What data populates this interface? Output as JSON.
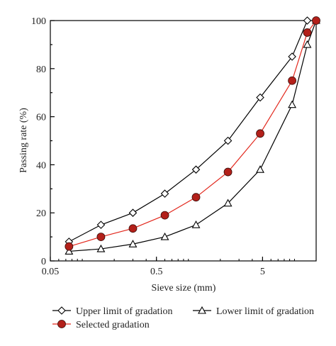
{
  "chart_data": {
    "type": "line",
    "xlabel": "Sieve size (mm)",
    "ylabel": "Passing rate (%)",
    "x_scale": "log",
    "xlim": [
      0.05,
      16
    ],
    "ylim": [
      0,
      100
    ],
    "x_ticks": [
      0.05,
      0.5,
      5
    ],
    "x_tick_labels": [
      "0.05",
      "0.5",
      "5"
    ],
    "y_ticks": [
      0,
      20,
      40,
      60,
      80,
      100
    ],
    "y_tick_labels": [
      "0",
      "20",
      "40",
      "60",
      "80",
      "100"
    ],
    "grid": false,
    "legend_position": "bottom",
    "x": [
      0.075,
      0.15,
      0.3,
      0.6,
      1.18,
      2.36,
      4.75,
      9.5,
      13.2,
      16
    ],
    "series": [
      {
        "name": "Upper limit of gradation",
        "marker": "diamond",
        "color": "#000000",
        "x": [
          0.075,
          0.15,
          0.3,
          0.6,
          1.18,
          2.36,
          4.75,
          9.5,
          13.2
        ],
        "values": [
          8,
          15,
          20,
          28,
          38,
          50,
          68,
          85,
          100
        ]
      },
      {
        "name": "Lower limit of gradation",
        "marker": "triangle",
        "color": "#000000",
        "x": [
          0.075,
          0.15,
          0.3,
          0.6,
          1.18,
          2.36,
          4.75,
          9.5,
          13.2,
          16
        ],
        "values": [
          4,
          5,
          7,
          10,
          15,
          24,
          38,
          65,
          90,
          100
        ]
      },
      {
        "name": "Selected gradation",
        "marker": "circle",
        "color": "#e2271c",
        "marker_fill": "#b3201a",
        "x": [
          0.075,
          0.15,
          0.3,
          0.6,
          1.18,
          2.36,
          4.75,
          9.5,
          13.2,
          16
        ],
        "values": [
          6,
          10,
          13.5,
          19,
          26.5,
          37,
          53,
          75,
          95,
          100
        ]
      }
    ]
  }
}
